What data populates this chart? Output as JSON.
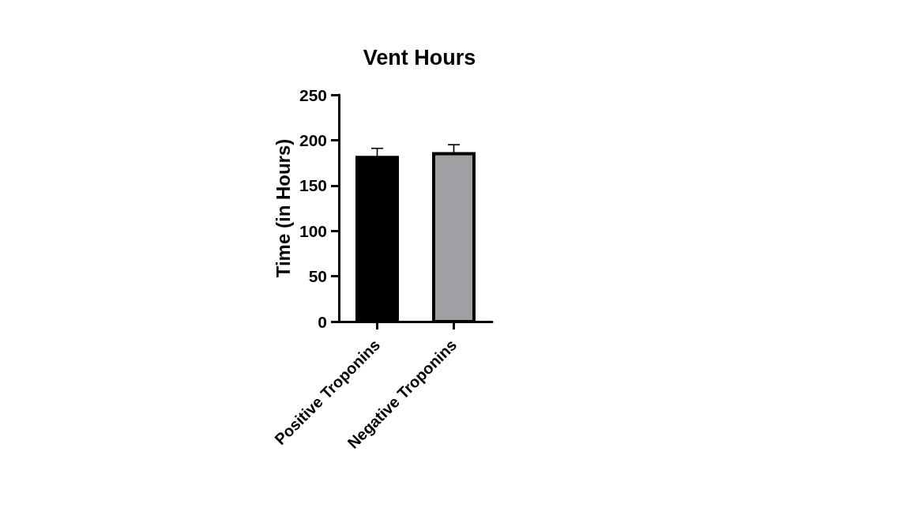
{
  "chart_data": {
    "type": "bar",
    "title": "Vent Hours",
    "ylabel": "Time (in Hours)",
    "categories": [
      "Positive Troponins",
      "Negative Troponins"
    ],
    "values": [
      181,
      185
    ],
    "colors": [
      "#000000",
      "#a0a0a4"
    ],
    "errors": [
      [
        181,
        191
      ],
      [
        185,
        195
      ]
    ],
    "ylim": [
      0,
      250
    ],
    "yticks": [
      0,
      50,
      100,
      150,
      200,
      250
    ]
  }
}
